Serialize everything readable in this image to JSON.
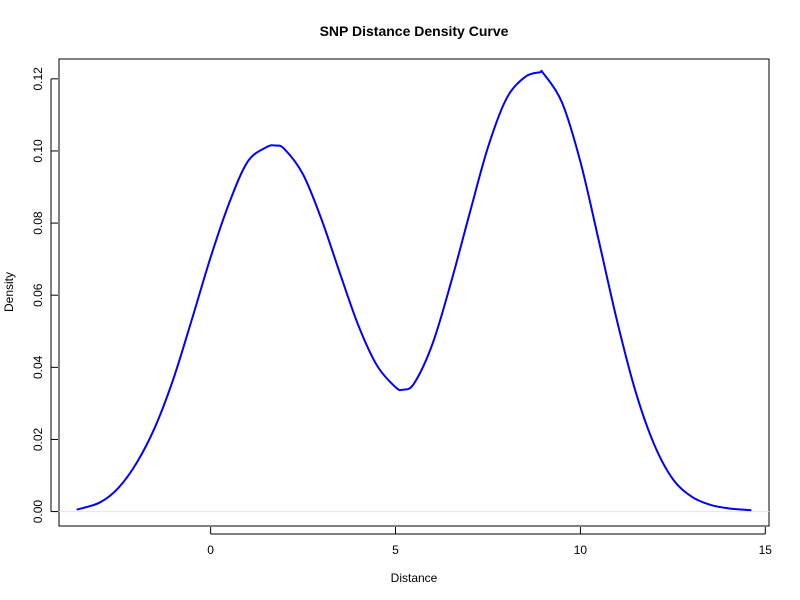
{
  "chart_data": {
    "type": "line",
    "title": "SNP Distance Density Curve",
    "xlabel": "Distance",
    "ylabel": "Density",
    "xlim": [
      -4.1,
      15.1
    ],
    "ylim": [
      -0.004,
      0.1255
    ],
    "x_ticks": [
      0,
      5,
      10,
      15
    ],
    "x_tick_labels": [
      "0",
      "5",
      "10",
      "15"
    ],
    "y_ticks": [
      0.0,
      0.02,
      0.04,
      0.06,
      0.08,
      0.1,
      0.12
    ],
    "y_tick_labels": [
      "0.00",
      "0.02",
      "0.04",
      "0.06",
      "0.08",
      "0.10",
      "0.12"
    ],
    "grid": false,
    "baseline_y": 0,
    "colors": {
      "line": "#0000ff",
      "axis": "#000000",
      "baseline": "#e6e6e6"
    },
    "series": [
      {
        "x": [
          -3.6,
          -3.0,
          -2.5,
          -2.0,
          -1.5,
          -1.0,
          -0.5,
          0.0,
          0.5,
          1.0,
          1.5,
          1.75,
          2.0,
          2.5,
          3.0,
          3.5,
          4.0,
          4.5,
          5.0,
          5.2,
          5.5,
          6.0,
          6.5,
          7.0,
          7.5,
          8.0,
          8.5,
          8.9,
          9.0,
          9.5,
          10.0,
          10.5,
          11.0,
          11.5,
          12.0,
          12.5,
          13.0,
          13.5,
          14.0,
          14.6
        ],
        "y": [
          0.0006,
          0.0025,
          0.0065,
          0.0135,
          0.0235,
          0.037,
          0.0535,
          0.0705,
          0.0855,
          0.097,
          0.101,
          0.1015,
          0.1005,
          0.0935,
          0.081,
          0.066,
          0.0515,
          0.0405,
          0.0345,
          0.0338,
          0.0355,
          0.0465,
          0.0635,
          0.0825,
          0.101,
          0.1145,
          0.1205,
          0.1218,
          0.1215,
          0.1135,
          0.097,
          0.075,
          0.0525,
          0.033,
          0.0185,
          0.009,
          0.0042,
          0.0019,
          0.0009,
          0.0004
        ]
      }
    ]
  }
}
